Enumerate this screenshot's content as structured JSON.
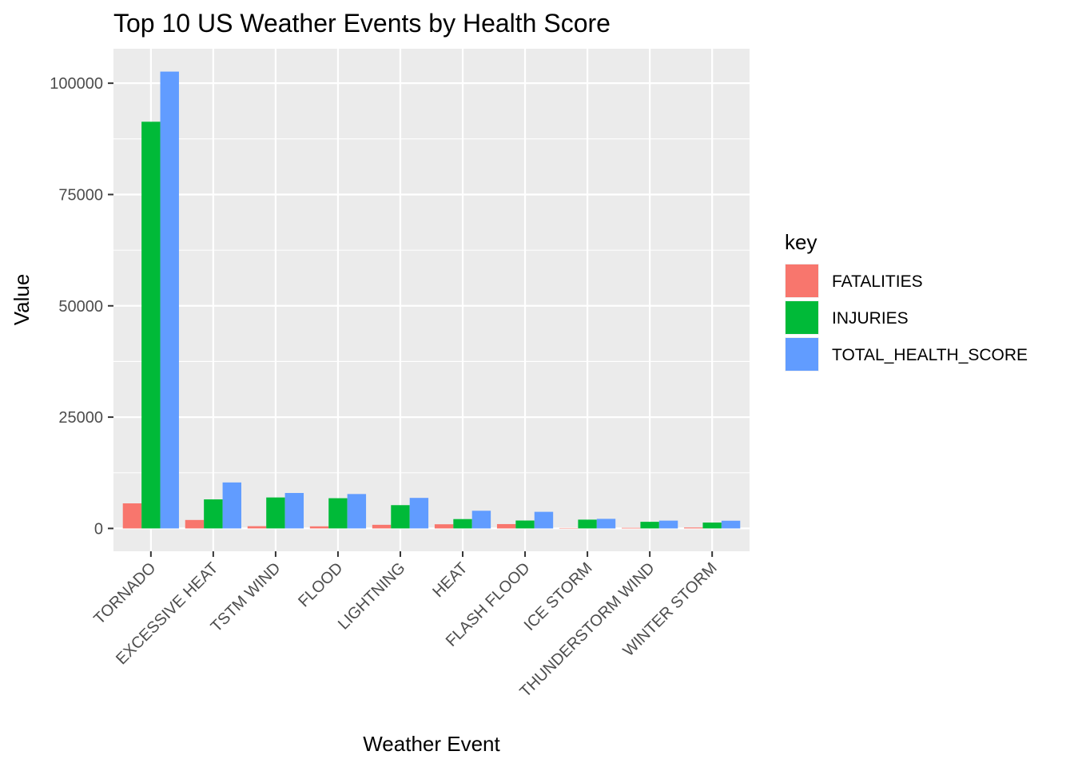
{
  "chart_data": {
    "type": "bar",
    "title": "Top 10 US Weather Events by Health Score",
    "xlabel": "Weather Event",
    "ylabel": "Value",
    "categories": [
      "TORNADO",
      "EXCESSIVE HEAT",
      "TSTM WIND",
      "FLOOD",
      "LIGHTNING",
      "HEAT",
      "FLASH FLOOD",
      "ICE STORM",
      "THUNDERSTORM WIND",
      "WINTER STORM"
    ],
    "series": [
      {
        "name": "FATALITIES",
        "color": "#F8766D",
        "values": [
          5633,
          1903,
          504,
          470,
          816,
          937,
          978,
          89,
          133,
          206
        ]
      },
      {
        "name": "INJURIES",
        "color": "#00BA38",
        "values": [
          91346,
          6525,
          6957,
          6789,
          5230,
          2100,
          1777,
          1975,
          1488,
          1321
        ]
      },
      {
        "name": "TOTAL_HEALTH_SCORE",
        "color": "#619CFF",
        "values": [
          102612,
          10331,
          7965,
          7729,
          6862,
          3974,
          3733,
          2153,
          1754,
          1733
        ]
      }
    ],
    "yticks": [
      0,
      25000,
      50000,
      75000,
      100000
    ],
    "ylim": [
      -5131,
      107743
    ],
    "grid": true,
    "legend": {
      "title": "key",
      "position": "right"
    }
  }
}
